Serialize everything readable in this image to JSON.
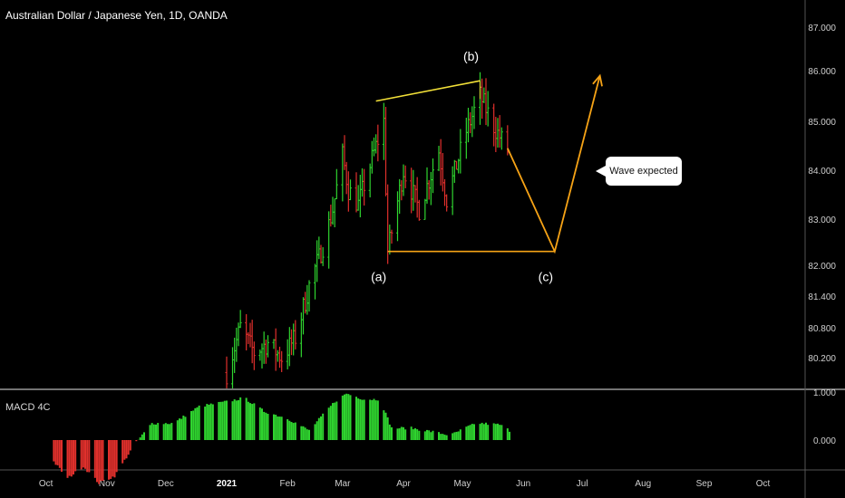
{
  "chart_title": "Australian Dollar / Japanese Yen, 1D, OANDA",
  "indicator_label": "MACD 4C",
  "callout_text": "Wave expected",
  "colors": {
    "up": "#2fd42f",
    "down": "#e0302c",
    "pattern": "#f6a316",
    "top_line": "#f2e038",
    "axis_text": "#cfcfcf",
    "divider": "#e6e6e6"
  },
  "chart_data": [
    {
      "type": "candlestick",
      "title": "Australian Dollar / Japanese Yen, 1D, OANDA",
      "y_ticks": [
        "87.000",
        "86.000",
        "85.000",
        "84.000",
        "83.000",
        "82.000",
        "81.400",
        "80.800",
        "80.200"
      ],
      "x_ticks": [
        "Oct",
        "Nov",
        "Dec",
        "2021",
        "Feb",
        "Mar",
        "Apr",
        "May",
        "Jun",
        "Jul",
        "Aug",
        "Sep",
        "Oct"
      ],
      "price_path": [
        [
          "2021-01-01",
          79.9
        ],
        [
          "2021-01-08",
          80.8
        ],
        [
          "2021-01-15",
          80.3
        ],
        [
          "2021-01-22",
          80.5
        ],
        [
          "2021-01-29",
          80.2
        ],
        [
          "2021-02-05",
          80.6
        ],
        [
          "2021-02-12",
          81.6
        ],
        [
          "2021-02-19",
          82.4
        ],
        [
          "2021-02-24",
          83.2
        ],
        [
          "2021-03-01",
          84.3
        ],
        [
          "2021-03-04",
          83.6
        ],
        [
          "2021-03-09",
          83.3
        ],
        [
          "2021-03-15",
          84.1
        ],
        [
          "2021-03-22",
          85.0
        ],
        [
          "2021-03-24",
          82.3
        ],
        [
          "2021-04-01",
          84.0
        ],
        [
          "2021-04-09",
          83.2
        ],
        [
          "2021-04-19",
          84.4
        ],
        [
          "2021-04-23",
          83.4
        ],
        [
          "2021-05-03",
          84.8
        ],
        [
          "2021-05-10",
          85.5
        ],
        [
          "2021-05-17",
          84.9
        ],
        [
          "2021-05-24",
          84.4
        ]
      ],
      "annotations": [
        {
          "label": "(a)",
          "date": "2021-03-24",
          "value": 82.3
        },
        {
          "label": "(b)",
          "date": "2021-05-10",
          "value": 85.8
        },
        {
          "label": "(c)",
          "date": "2021-06-17",
          "value": 82.3
        }
      ],
      "pattern_path": [
        [
          "2021-05-24",
          84.45
        ],
        [
          "2021-06-17",
          82.3
        ],
        [
          "2021-07-10",
          85.9
        ]
      ],
      "upper_trendline": [
        [
          "2021-03-18",
          85.4
        ],
        [
          "2021-05-10",
          85.8
        ]
      ],
      "lower_trendline": [
        [
          "2021-03-24",
          82.3
        ],
        [
          "2021-06-17",
          82.3
        ]
      ]
    },
    {
      "type": "histogram",
      "title": "MACD 4C",
      "y_ticks": [
        "1.000",
        "0.000"
      ],
      "path": [
        [
          "2020-10-03",
          -0.35
        ],
        [
          "2020-10-12",
          -0.8
        ],
        [
          "2020-10-20",
          -0.55
        ],
        [
          "2020-10-28",
          -0.9
        ],
        [
          "2020-11-05",
          -0.75
        ],
        [
          "2020-11-15",
          -0.1
        ],
        [
          "2020-11-24",
          0.35
        ],
        [
          "2020-12-05",
          0.35
        ],
        [
          "2020-12-18",
          0.7
        ],
        [
          "2021-01-01",
          0.8
        ],
        [
          "2021-01-10",
          0.88
        ],
        [
          "2021-01-20",
          0.6
        ],
        [
          "2021-02-01",
          0.45
        ],
        [
          "2021-02-12",
          0.2
        ],
        [
          "2021-02-25",
          0.8
        ],
        [
          "2021-03-03",
          0.97
        ],
        [
          "2021-03-12",
          0.85
        ],
        [
          "2021-03-20",
          0.85
        ],
        [
          "2021-03-26",
          0.25
        ],
        [
          "2021-04-05",
          0.25
        ],
        [
          "2021-04-15",
          0.18
        ],
        [
          "2021-04-25",
          0.1
        ],
        [
          "2021-05-05",
          0.3
        ],
        [
          "2021-05-10",
          0.35
        ],
        [
          "2021-05-20",
          0.32
        ],
        [
          "2021-05-25",
          0.2
        ]
      ]
    }
  ]
}
